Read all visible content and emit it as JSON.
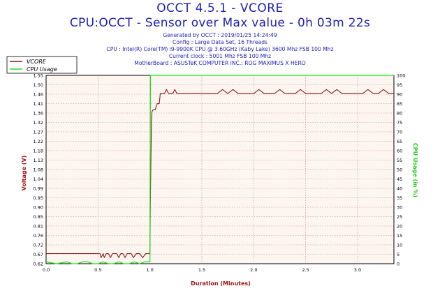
{
  "header": {
    "title": "OCCT 4.5.1 - VCORE",
    "subtitle": "CPU:OCCT - Sensor over Max value - 0h 03m 22s",
    "info_lines": [
      "Generated by OCCT : 2019/01/25 14:24:49",
      "Config : Large Data Set, 16 Threads",
      "CPU : Intel(R) Core(TM) i9-9900K CPU @ 3.60GHz (Kaby Lake) 3600 Mhz FSB 100 Mhz",
      "Current clock : 5001 Mhz FSB 100 Mhz",
      "MotherBoard : ASUSTeK COMPUTER INC.: ROG MAXIMUS X HERO"
    ]
  },
  "colors": {
    "vcore": "#8b1a1a",
    "cpu_usage": "#22dd22",
    "title": "#1f1fb0",
    "ylabel_left": "#a01010",
    "ylabel_right": "#22cc22",
    "xlabel": "#a01010",
    "grid": "#c08080",
    "plot_bg": "#fdf6f0"
  },
  "chart_data": {
    "type": "line",
    "xlabel": "Duration (Minutes)",
    "ylabel_left": "Voltage (V)",
    "ylabel_right": "CPU Usage (in %)",
    "xlim": [
      0,
      3.35
    ],
    "ylim_left": [
      0.62,
      1.55
    ],
    "ylim_right": [
      0,
      100
    ],
    "x_ticks": [
      "0.0",
      "0.5",
      "1.0",
      "1.5",
      "2.0",
      "2.5",
      "3.0"
    ],
    "y_ticks_left": [
      "1.55",
      "1.50",
      "1.46",
      "1.41",
      "1.36",
      "1.32",
      "1.27",
      "1.22",
      "1.18",
      "1.13",
      "1.08",
      "1.04",
      "0.99",
      "0.95",
      "0.90",
      "0.85",
      "0.81",
      "0.76",
      "0.72",
      "0.67",
      "0.62"
    ],
    "y_ticks_right": [
      "100",
      "95",
      "90",
      "85",
      "80",
      "75",
      "70",
      "65",
      "60",
      "55",
      "50",
      "45",
      "40",
      "35",
      "30",
      "25",
      "20",
      "15",
      "10",
      "5",
      "0"
    ],
    "grid": true,
    "legend_position": "top-left",
    "series": [
      {
        "name": "VCORE",
        "axis": "left",
        "x": [
          0.0,
          0.52,
          0.53,
          0.55,
          0.56,
          0.58,
          0.6,
          0.62,
          0.64,
          0.68,
          0.7,
          0.72,
          0.74,
          0.76,
          0.78,
          0.8,
          0.82,
          0.84,
          0.87,
          0.9,
          0.93,
          0.96,
          0.99,
          1.0,
          1.005,
          1.01,
          1.015,
          1.02,
          1.03,
          1.05,
          1.07,
          1.09,
          1.1,
          1.12,
          1.14,
          1.16,
          1.18,
          1.2,
          1.22,
          1.24,
          1.26,
          1.28,
          1.3,
          1.35,
          1.4,
          1.45,
          1.5,
          1.55,
          1.6,
          1.65,
          1.7,
          1.75,
          1.8,
          1.85,
          1.9,
          1.95,
          2.0,
          2.05,
          2.1,
          2.15,
          2.2,
          2.25,
          2.3,
          2.35,
          2.4,
          2.45,
          2.5,
          2.55,
          2.6,
          2.65,
          2.7,
          2.75,
          2.8,
          2.85,
          2.9,
          2.95,
          3.0,
          3.05,
          3.1,
          3.15,
          3.2,
          3.25,
          3.3,
          3.35
        ],
        "y": [
          0.67,
          0.67,
          0.65,
          0.67,
          0.65,
          0.67,
          0.67,
          0.65,
          0.67,
          0.67,
          0.65,
          0.67,
          0.67,
          0.65,
          0.67,
          0.67,
          0.67,
          0.65,
          0.67,
          0.67,
          0.65,
          0.67,
          0.67,
          0.67,
          0.95,
          1.15,
          1.32,
          1.37,
          1.38,
          1.38,
          1.41,
          1.41,
          1.46,
          1.46,
          1.46,
          1.48,
          1.46,
          1.46,
          1.46,
          1.48,
          1.46,
          1.46,
          1.46,
          1.46,
          1.46,
          1.46,
          1.46,
          1.46,
          1.46,
          1.46,
          1.48,
          1.46,
          1.48,
          1.46,
          1.46,
          1.46,
          1.46,
          1.48,
          1.46,
          1.46,
          1.46,
          1.48,
          1.46,
          1.46,
          1.46,
          1.48,
          1.46,
          1.46,
          1.46,
          1.46,
          1.48,
          1.46,
          1.48,
          1.46,
          1.46,
          1.46,
          1.46,
          1.46,
          1.48,
          1.46,
          1.46,
          1.48,
          1.46,
          1.46
        ]
      },
      {
        "name": "CPU Usage",
        "axis": "right",
        "x": [
          0.0,
          0.1,
          0.2,
          0.25,
          0.3,
          0.35,
          0.4,
          0.45,
          0.5,
          0.55,
          0.6,
          0.65,
          0.7,
          0.75,
          0.8,
          0.85,
          0.9,
          0.95,
          0.99,
          1.0,
          1.005,
          3.35
        ],
        "y": [
          1,
          0,
          1,
          0,
          0,
          1,
          1,
          0,
          0,
          1,
          0,
          0,
          1,
          0,
          0,
          1,
          0,
          1,
          1,
          1,
          100,
          100
        ]
      }
    ]
  }
}
